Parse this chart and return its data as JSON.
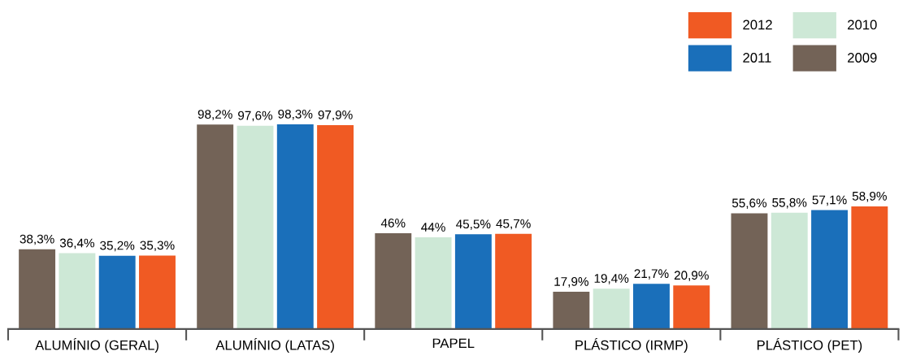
{
  "chart_data": {
    "type": "bar",
    "categories": [
      "ALUMÍNIO (GERAL)",
      "ALUMÍNIO (LATAS)",
      "PAPEL",
      "PLÁSTICO (IRMP)",
      "PLÁSTICO (PET)"
    ],
    "series": [
      {
        "name": "2009",
        "color": "#736357",
        "values": [
          38.3,
          98.2,
          46,
          17.9,
          55.6
        ],
        "value_labels": [
          "38,3%",
          "98,2%",
          "46%",
          "17,9%",
          "55,6%"
        ]
      },
      {
        "name": "2010",
        "color": "#cde8d6",
        "values": [
          36.4,
          97.6,
          44,
          19.4,
          55.8
        ],
        "value_labels": [
          "36,4%",
          "97,6%",
          "44%",
          "19,4%",
          "55,8%"
        ]
      },
      {
        "name": "2011",
        "color": "#1a6fba",
        "values": [
          35.2,
          98.3,
          45.5,
          21.7,
          57.1
        ],
        "value_labels": [
          "35,2%",
          "98,3%",
          "45,5%",
          "21,7%",
          "57,1%"
        ]
      },
      {
        "name": "2012",
        "color": "#f05a23",
        "values": [
          35.3,
          97.9,
          45.7,
          20.9,
          58.9
        ],
        "value_labels": [
          "35,3%",
          "97,9%",
          "45,7%",
          "20,9%",
          "58,9%"
        ]
      }
    ],
    "legend": "top right",
    "grid": false
  }
}
